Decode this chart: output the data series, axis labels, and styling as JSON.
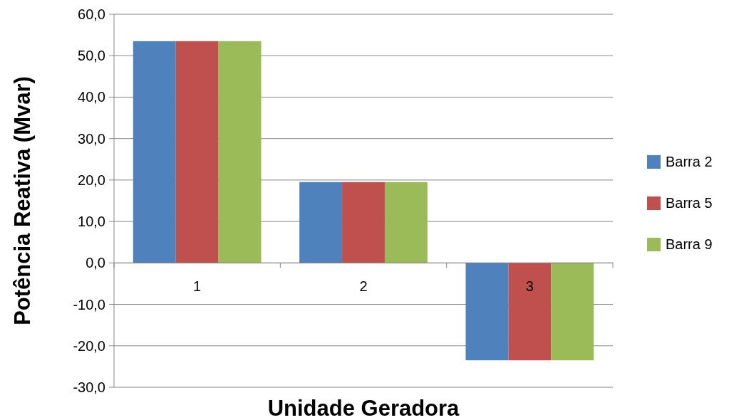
{
  "chart_data": {
    "type": "bar",
    "xlabel": "Unidade Geradora",
    "ylabel": "Potência Reativa (Mvar)",
    "categories": [
      "1",
      "2",
      "3"
    ],
    "series": [
      {
        "name": "Barra 2",
        "color": "#4f81bd",
        "values": [
          53.5,
          19.5,
          -23.5
        ]
      },
      {
        "name": "Barra 5",
        "color": "#c0504d",
        "values": [
          53.5,
          19.5,
          -23.5
        ]
      },
      {
        "name": "Barra 9",
        "color": "#9bbb59",
        "values": [
          53.5,
          19.5,
          -23.5
        ]
      }
    ],
    "ylim": [
      -30,
      60
    ],
    "yticks": [
      {
        "value": -30,
        "label": "-30,0"
      },
      {
        "value": -20,
        "label": "-20,0"
      },
      {
        "value": -10,
        "label": "-10,0"
      },
      {
        "value": 0,
        "label": "0,0"
      },
      {
        "value": 10,
        "label": "10,0"
      },
      {
        "value": 20,
        "label": "20,0"
      },
      {
        "value": 30,
        "label": "30,0"
      },
      {
        "value": 40,
        "label": "40,0"
      },
      {
        "value": 50,
        "label": "50,0"
      },
      {
        "value": 60,
        "label": "60,0"
      }
    ],
    "grid": "y",
    "legend": "right"
  }
}
